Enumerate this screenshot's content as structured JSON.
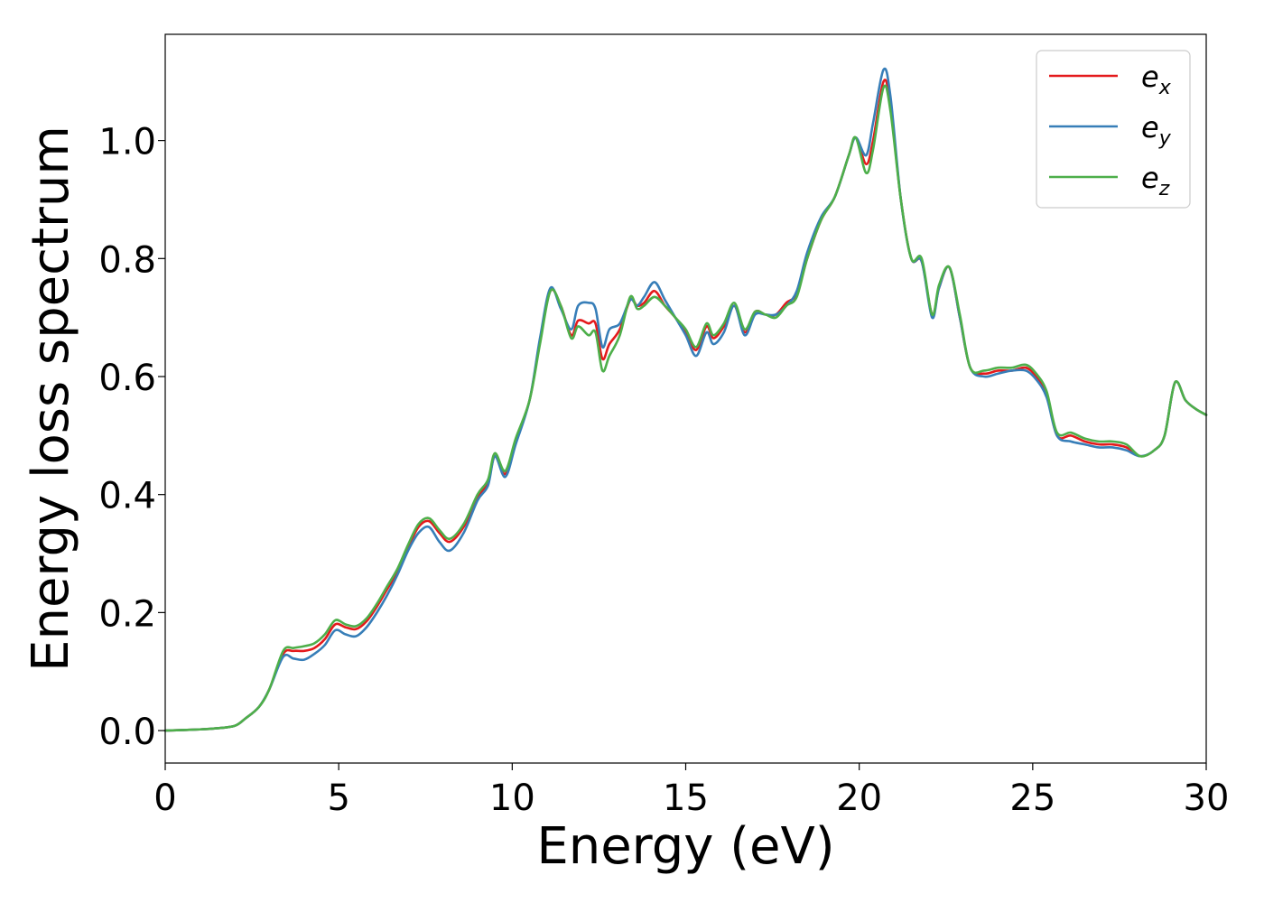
{
  "chart_data": {
    "type": "line",
    "title": "",
    "xlabel": "Energy (eV)",
    "ylabel": "Energy loss spectrum",
    "xlim": [
      0,
      30
    ],
    "ylim": [
      -0.055,
      1.18
    ],
    "xticks": [
      0,
      5,
      10,
      15,
      20,
      25,
      30
    ],
    "yticks": [
      0.0,
      0.2,
      0.4,
      0.6,
      0.8,
      1.0
    ],
    "xtick_labels": [
      "0",
      "5",
      "10",
      "15",
      "20",
      "25",
      "30"
    ],
    "ytick_labels": [
      "0.0",
      "0.2",
      "0.4",
      "0.6",
      "0.8",
      "1.0"
    ],
    "grid": false,
    "legend_position": "top-right",
    "series": [
      {
        "name": "e_x",
        "label_base": "e",
        "label_sub": "x",
        "color": "#e41a1c",
        "x": [
          0,
          1,
          1.5,
          2,
          2.3,
          2.7,
          3,
          3.4,
          3.7,
          4,
          4.3,
          4.6,
          4.9,
          5.2,
          5.5,
          5.8,
          6.1,
          6.4,
          6.7,
          7,
          7.3,
          7.6,
          7.9,
          8.2,
          8.6,
          9,
          9.3,
          9.5,
          9.8,
          10.1,
          10.5,
          10.8,
          11.1,
          11.4,
          11.7,
          11.9,
          12.2,
          12.4,
          12.6,
          12.8,
          13.1,
          13.4,
          13.6,
          13.8,
          14.1,
          14.4,
          14.7,
          15,
          15.3,
          15.6,
          15.8,
          16.1,
          16.4,
          16.7,
          17,
          17.3,
          17.6,
          17.9,
          18.2,
          18.5,
          18.9,
          19.3,
          19.7,
          19.9,
          20.2,
          20.4,
          20.7,
          20.9,
          21.2,
          21.5,
          21.8,
          22.1,
          22.3,
          22.6,
          22.9,
          23.2,
          23.6,
          24,
          24.4,
          24.8,
          25.1,
          25.4,
          25.7,
          26.1,
          26.5,
          26.9,
          27.3,
          27.7,
          28.1,
          28.5,
          28.8,
          29.1,
          29.4,
          29.7,
          30
        ],
        "y": [
          0,
          0.002,
          0.004,
          0.008,
          0.02,
          0.04,
          0.07,
          0.13,
          0.135,
          0.135,
          0.14,
          0.155,
          0.18,
          0.175,
          0.172,
          0.185,
          0.21,
          0.24,
          0.27,
          0.31,
          0.345,
          0.355,
          0.335,
          0.32,
          0.345,
          0.395,
          0.42,
          0.465,
          0.435,
          0.49,
          0.56,
          0.66,
          0.745,
          0.72,
          0.67,
          0.695,
          0.69,
          0.69,
          0.63,
          0.655,
          0.68,
          0.73,
          0.72,
          0.725,
          0.745,
          0.72,
          0.7,
          0.675,
          0.645,
          0.685,
          0.665,
          0.685,
          0.72,
          0.675,
          0.71,
          0.705,
          0.705,
          0.725,
          0.74,
          0.8,
          0.865,
          0.905,
          0.975,
          1.005,
          0.96,
          1.0,
          1.1,
          1.06,
          0.9,
          0.8,
          0.795,
          0.705,
          0.75,
          0.785,
          0.7,
          0.615,
          0.605,
          0.61,
          0.61,
          0.615,
          0.6,
          0.57,
          0.5,
          0.5,
          0.49,
          0.485,
          0.485,
          0.48,
          0.465,
          0.475,
          0.5,
          0.59,
          0.56,
          0.545,
          0.535
        ]
      },
      {
        "name": "e_y",
        "label_base": "e",
        "label_sub": "y",
        "color": "#377eb8",
        "x": [
          0,
          1,
          1.5,
          2,
          2.3,
          2.7,
          3,
          3.4,
          3.7,
          4,
          4.3,
          4.6,
          4.9,
          5.2,
          5.5,
          5.8,
          6.1,
          6.4,
          6.7,
          7,
          7.3,
          7.6,
          7.9,
          8.2,
          8.6,
          9,
          9.3,
          9.5,
          9.8,
          10.1,
          10.5,
          10.8,
          11.1,
          11.4,
          11.7,
          11.9,
          12.2,
          12.4,
          12.6,
          12.8,
          13.1,
          13.4,
          13.6,
          13.8,
          14.1,
          14.4,
          14.7,
          15,
          15.3,
          15.6,
          15.8,
          16.1,
          16.4,
          16.7,
          17,
          17.3,
          17.6,
          17.9,
          18.2,
          18.5,
          18.9,
          19.3,
          19.7,
          19.9,
          20.2,
          20.4,
          20.7,
          20.9,
          21.2,
          21.5,
          21.8,
          22.1,
          22.3,
          22.6,
          22.9,
          23.2,
          23.6,
          24,
          24.4,
          24.8,
          25.1,
          25.4,
          25.7,
          26.1,
          26.5,
          26.9,
          27.3,
          27.7,
          28.1,
          28.5,
          28.8,
          29.1,
          29.4,
          29.7,
          30
        ],
        "y": [
          0,
          0.002,
          0.004,
          0.008,
          0.02,
          0.04,
          0.07,
          0.125,
          0.122,
          0.12,
          0.13,
          0.145,
          0.17,
          0.163,
          0.16,
          0.175,
          0.2,
          0.23,
          0.265,
          0.305,
          0.335,
          0.345,
          0.32,
          0.305,
          0.335,
          0.39,
          0.415,
          0.465,
          0.43,
          0.485,
          0.56,
          0.665,
          0.75,
          0.715,
          0.68,
          0.72,
          0.725,
          0.715,
          0.65,
          0.68,
          0.69,
          0.73,
          0.72,
          0.735,
          0.76,
          0.73,
          0.7,
          0.67,
          0.635,
          0.675,
          0.655,
          0.675,
          0.72,
          0.67,
          0.705,
          0.705,
          0.705,
          0.72,
          0.745,
          0.81,
          0.87,
          0.905,
          0.975,
          1.005,
          0.975,
          1.03,
          1.12,
          1.075,
          0.9,
          0.8,
          0.795,
          0.7,
          0.75,
          0.785,
          0.7,
          0.615,
          0.6,
          0.605,
          0.61,
          0.61,
          0.595,
          0.565,
          0.5,
          0.49,
          0.485,
          0.48,
          0.48,
          0.475,
          0.465,
          0.475,
          0.5,
          0.59,
          0.56,
          0.545,
          0.535
        ]
      },
      {
        "name": "e_z",
        "label_base": "e",
        "label_sub": "z",
        "color": "#4daf4a",
        "x": [
          0,
          1,
          1.5,
          2,
          2.3,
          2.7,
          3,
          3.4,
          3.7,
          4,
          4.3,
          4.6,
          4.9,
          5.2,
          5.5,
          5.8,
          6.1,
          6.4,
          6.7,
          7,
          7.3,
          7.6,
          7.9,
          8.2,
          8.6,
          9,
          9.3,
          9.5,
          9.8,
          10.1,
          10.5,
          10.8,
          11.1,
          11.4,
          11.7,
          11.9,
          12.2,
          12.4,
          12.6,
          12.8,
          13.1,
          13.4,
          13.6,
          13.8,
          14.1,
          14.4,
          14.7,
          15,
          15.3,
          15.6,
          15.8,
          16.1,
          16.4,
          16.7,
          17,
          17.3,
          17.6,
          17.9,
          18.2,
          18.5,
          18.9,
          19.3,
          19.7,
          19.9,
          20.2,
          20.4,
          20.7,
          20.9,
          21.2,
          21.5,
          21.8,
          22.1,
          22.3,
          22.6,
          22.9,
          23.2,
          23.6,
          24,
          24.4,
          24.8,
          25.1,
          25.4,
          25.7,
          26.1,
          26.5,
          26.9,
          27.3,
          27.7,
          28.1,
          28.5,
          28.8,
          29.1,
          29.4,
          29.7,
          30
        ],
        "y": [
          0,
          0.002,
          0.004,
          0.008,
          0.02,
          0.04,
          0.07,
          0.135,
          0.14,
          0.143,
          0.148,
          0.163,
          0.187,
          0.18,
          0.177,
          0.19,
          0.215,
          0.245,
          0.275,
          0.315,
          0.35,
          0.36,
          0.34,
          0.325,
          0.35,
          0.4,
          0.425,
          0.47,
          0.44,
          0.495,
          0.56,
          0.655,
          0.745,
          0.72,
          0.665,
          0.685,
          0.67,
          0.675,
          0.61,
          0.635,
          0.67,
          0.735,
          0.715,
          0.72,
          0.735,
          0.72,
          0.7,
          0.68,
          0.65,
          0.69,
          0.67,
          0.69,
          0.725,
          0.68,
          0.71,
          0.705,
          0.7,
          0.72,
          0.735,
          0.8,
          0.865,
          0.905,
          0.975,
          1.005,
          0.945,
          0.985,
          1.09,
          1.05,
          0.9,
          0.8,
          0.8,
          0.705,
          0.755,
          0.785,
          0.705,
          0.615,
          0.61,
          0.615,
          0.615,
          0.62,
          0.605,
          0.575,
          0.505,
          0.505,
          0.495,
          0.49,
          0.49,
          0.485,
          0.465,
          0.475,
          0.5,
          0.59,
          0.56,
          0.545,
          0.535
        ]
      }
    ]
  }
}
